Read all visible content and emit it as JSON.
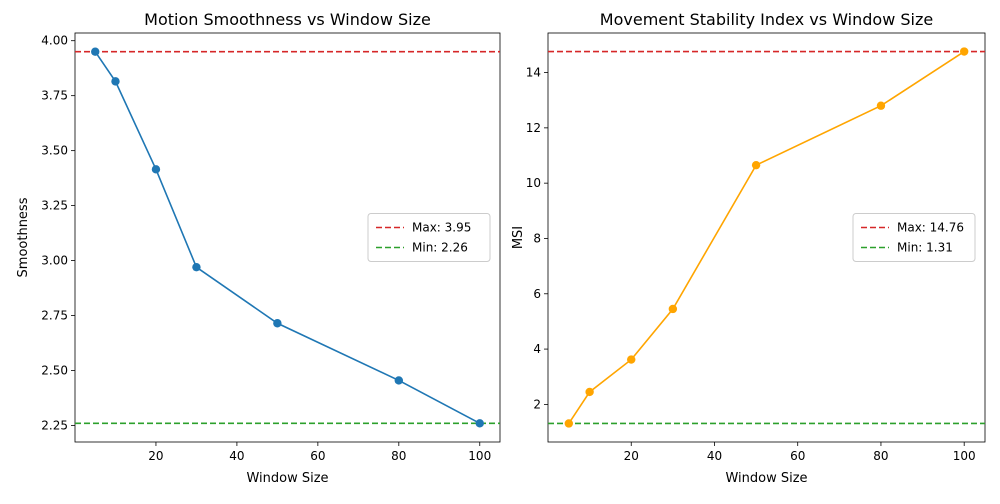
{
  "chart_data": [
    {
      "type": "line",
      "title": "Motion Smoothness vs Window Size",
      "xlabel": "Window Size",
      "ylabel": "Smoothness",
      "x": [
        5,
        10,
        20,
        30,
        50,
        80,
        100
      ],
      "series": [
        {
          "values": [
            3.95,
            3.815,
            3.415,
            2.97,
            2.715,
            2.455,
            2.26
          ],
          "color": "#1f77b4",
          "marker": "circle"
        }
      ],
      "reference_lines": [
        {
          "label": "Max: 3.95",
          "value": 3.95,
          "color": "#d62728",
          "style": "dashed"
        },
        {
          "label": "Min: 2.26",
          "value": 2.26,
          "color": "#2ca02c",
          "style": "dashed"
        }
      ],
      "xlim": [
        0,
        105
      ],
      "ylim": [
        2.175,
        4.035
      ],
      "xticks": [
        20,
        40,
        60,
        80,
        100
      ],
      "xtick_labels": [
        "20",
        "40",
        "60",
        "80",
        "100"
      ],
      "yticks": [
        2.25,
        2.5,
        2.75,
        3.0,
        3.25,
        3.5,
        3.75,
        4.0
      ],
      "ytick_labels": [
        "2.25",
        "2.50",
        "2.75",
        "3.00",
        "3.25",
        "3.50",
        "3.75",
        "4.00"
      ],
      "grid": false,
      "legend_position": "center-right"
    },
    {
      "type": "line",
      "title": "Movement Stability Index vs Window Size",
      "xlabel": "Window Size",
      "ylabel": "MSI",
      "x": [
        5,
        10,
        20,
        30,
        50,
        80,
        100
      ],
      "series": [
        {
          "values": [
            1.31,
            2.45,
            3.62,
            5.45,
            10.65,
            12.8,
            14.76
          ],
          "color": "#ffa500",
          "marker": "circle"
        }
      ],
      "reference_lines": [
        {
          "label": "Max: 14.76",
          "value": 14.76,
          "color": "#d62728",
          "style": "dashed"
        },
        {
          "label": "Min: 1.31",
          "value": 1.31,
          "color": "#2ca02c",
          "style": "dashed"
        }
      ],
      "xlim": [
        0,
        105
      ],
      "ylim": [
        0.64,
        15.43
      ],
      "xticks": [
        20,
        40,
        60,
        80,
        100
      ],
      "xtick_labels": [
        "20",
        "40",
        "60",
        "80",
        "100"
      ],
      "yticks": [
        2,
        4,
        6,
        8,
        10,
        12,
        14
      ],
      "ytick_labels": [
        "2",
        "4",
        "6",
        "8",
        "10",
        "12",
        "14"
      ],
      "grid": false,
      "legend_position": "center-right"
    }
  ]
}
